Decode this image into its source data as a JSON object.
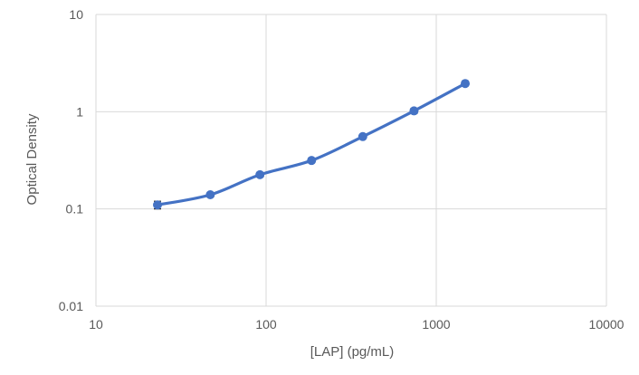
{
  "chart_data": {
    "type": "scatter",
    "title": "",
    "xlabel": "[LAP] (pg/mL)",
    "ylabel": "Optical Density",
    "x_scale": "log",
    "y_scale": "log",
    "xlim": [
      10,
      10000
    ],
    "ylim": [
      0.01,
      10
    ],
    "x_ticks": [
      10,
      100,
      1000,
      10000
    ],
    "x_tick_labels": [
      "10",
      "100",
      "1000",
      "10000"
    ],
    "y_ticks": [
      0.01,
      0.1,
      1,
      10
    ],
    "y_tick_labels": [
      "0.01",
      "0.1",
      "1",
      "10"
    ],
    "grid": true,
    "legend": "none",
    "series": [
      {
        "x": [
          23,
          47,
          92,
          185,
          370,
          740,
          1480
        ],
        "y": [
          0.11,
          0.14,
          0.225,
          0.315,
          0.555,
          1.02,
          1.95
        ],
        "y_err": [
          0.01,
          0.006,
          0.012,
          0.015,
          0.02,
          0.06,
          0.06
        ],
        "color": "#4472C4",
        "style": "smoothed line with markers and error bars"
      }
    ],
    "colors": {
      "series": "#4472C4",
      "grid": "#d9d9d9",
      "text": "#595959"
    }
  }
}
